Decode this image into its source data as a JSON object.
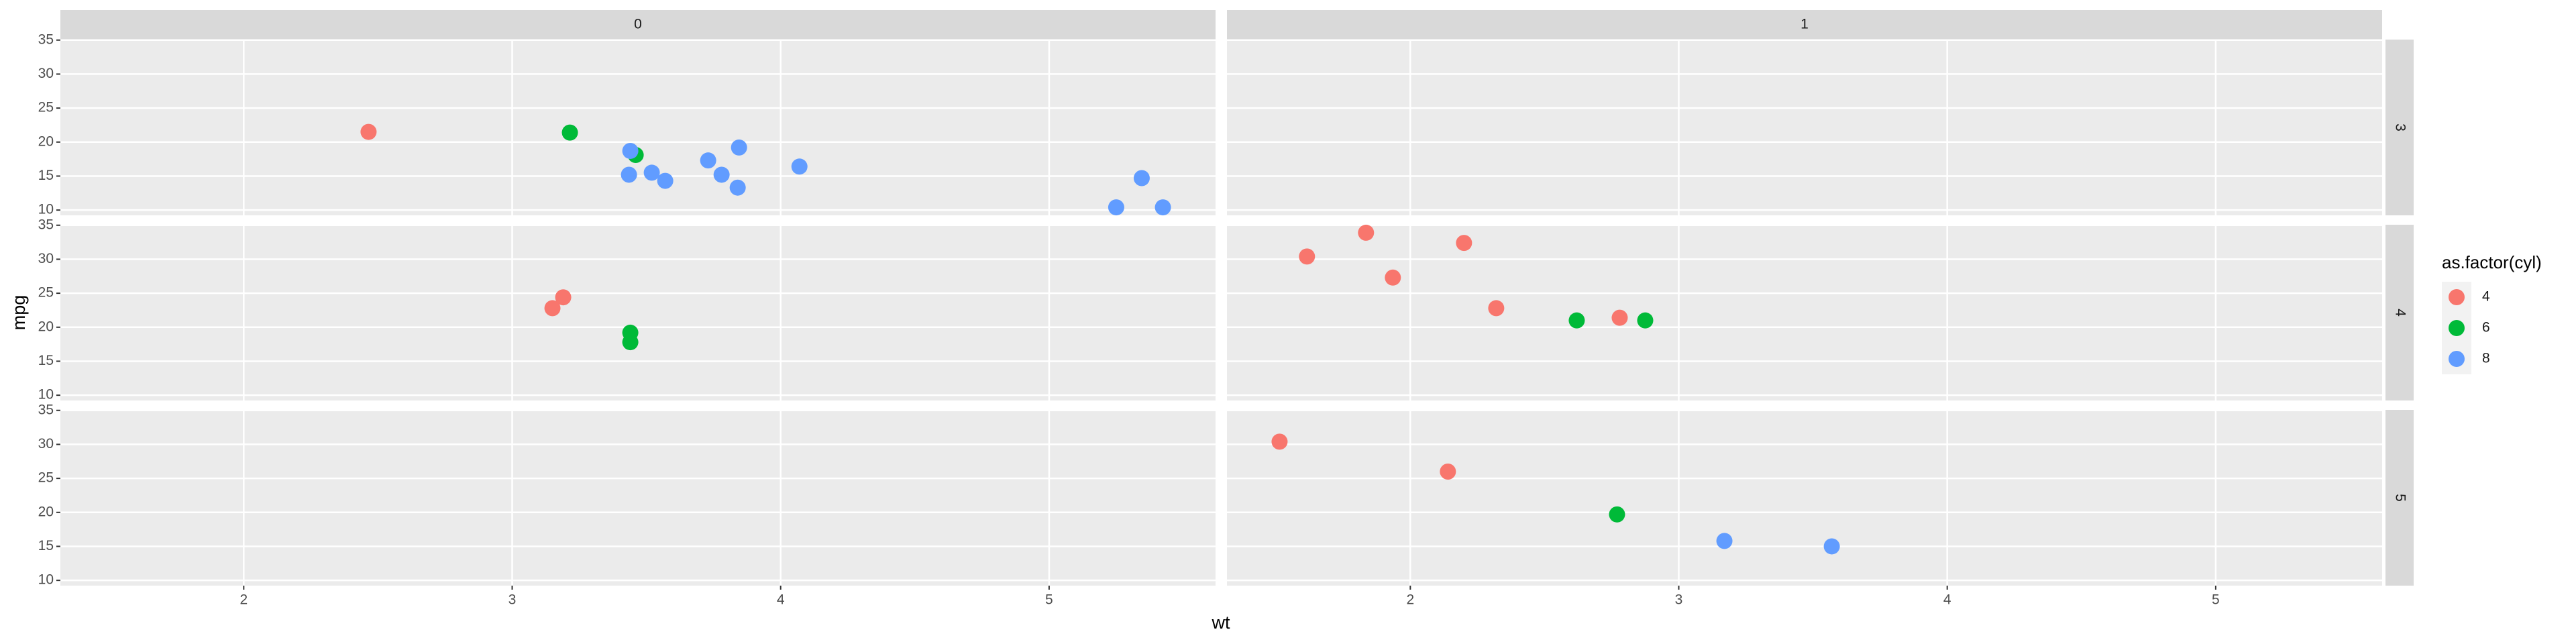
{
  "chart_data": {
    "type": "scatter",
    "x_label": "wt",
    "y_label": "mpg",
    "legend_title": "as.factor(cyl)",
    "facet_cols": [
      "0",
      "1"
    ],
    "facet_rows": [
      "3",
      "4",
      "5"
    ],
    "xlim": [
      1.317,
      5.62
    ],
    "xticks": [
      2,
      3,
      4,
      5
    ],
    "ylim": [
      9.225,
      35.075
    ],
    "yticks": [
      10,
      15,
      20,
      25,
      30,
      35
    ],
    "series": [
      {
        "name": "4",
        "color": "#F8766D"
      },
      {
        "name": "6",
        "color": "#00BA38"
      },
      {
        "name": "8",
        "color": "#619CFF"
      }
    ],
    "panels": [
      [
        [
          {
            "x": [
              2.465
            ],
            "values": [
              21.5
            ]
          },
          {
            "x": [
              3.215,
              3.46
            ],
            "values": [
              21.4,
              18.1
            ]
          },
          {
            "x": [
              3.44,
              3.57,
              4.07,
              3.73,
              3.78,
              5.25,
              5.424,
              5.345,
              3.52,
              3.435,
              3.84,
              3.845
            ],
            "values": [
              18.7,
              14.3,
              16.4,
              17.3,
              15.2,
              10.4,
              10.4,
              14.7,
              15.5,
              15.2,
              13.3,
              19.2
            ]
          }
        ],
        [
          {
            "x": [],
            "values": []
          },
          {
            "x": [],
            "values": []
          },
          {
            "x": [],
            "values": []
          }
        ]
      ],
      [
        [
          {
            "x": [
              3.19,
              3.15
            ],
            "values": [
              24.4,
              22.8
            ]
          },
          {
            "x": [
              3.44,
              3.44
            ],
            "values": [
              19.2,
              17.8
            ]
          },
          {
            "x": [],
            "values": []
          }
        ],
        [
          {
            "x": [
              2.32,
              2.2,
              1.615,
              1.835,
              1.935,
              2.78
            ],
            "values": [
              22.8,
              32.4,
              30.4,
              33.9,
              27.3,
              21.4
            ]
          },
          {
            "x": [
              2.62,
              2.875
            ],
            "values": [
              21,
              21
            ]
          },
          {
            "x": [],
            "values": []
          }
        ]
      ],
      [
        [
          {
            "x": [],
            "values": []
          },
          {
            "x": [],
            "values": []
          },
          {
            "x": [],
            "values": []
          }
        ],
        [
          {
            "x": [
              2.14,
              1.513
            ],
            "values": [
              26,
              30.4
            ]
          },
          {
            "x": [
              2.77
            ],
            "values": [
              19.7
            ]
          },
          {
            "x": [
              3.17,
              3.57
            ],
            "values": [
              15.8,
              15
            ]
          }
        ]
      ]
    ]
  }
}
